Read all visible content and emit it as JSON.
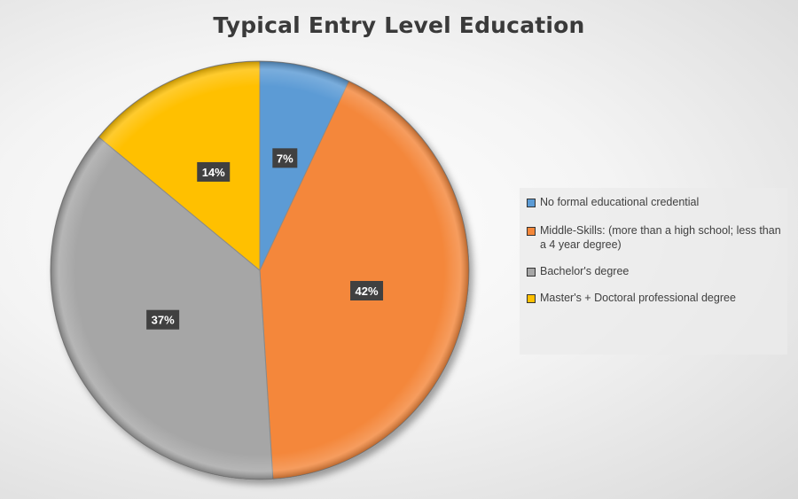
{
  "chart_data": {
    "type": "pie",
    "title": "Typical Entry Level Education",
    "categories": [
      "No formal educational credential",
      "Middle-Skills: (more than a high school; less than a 4 year degree)",
      "Bachelor's degree",
      "Master's + Doctoral professional degree"
    ],
    "values": [
      7,
      42,
      37,
      14
    ],
    "labels": [
      "7%",
      "42%",
      "37%",
      "14%"
    ],
    "colors": [
      "#5b9bd5",
      "#f4873a",
      "#a6a6a6",
      "#ffc000"
    ],
    "legend": "right"
  }
}
